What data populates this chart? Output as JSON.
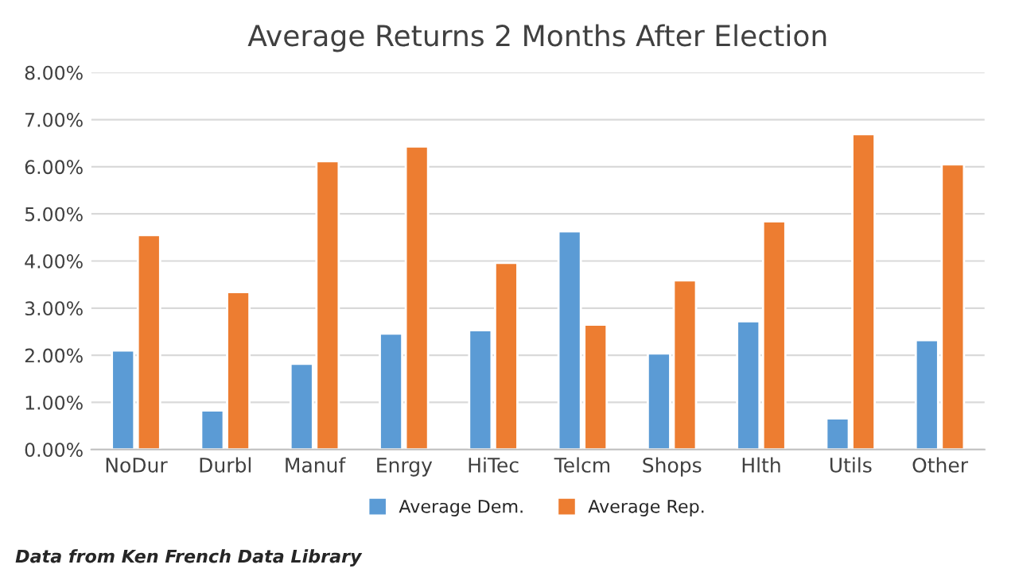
{
  "chart_data": {
    "type": "bar",
    "title": "Average Returns 2 Months After Election",
    "categories": [
      "NoDur",
      "Durbl",
      "Manuf",
      "Enrgy",
      "HiTec",
      "Telcm",
      "Shops",
      "Hlth",
      "Utils",
      "Other"
    ],
    "series": [
      {
        "name": "Average Dem.",
        "color": "#5b9bd5",
        "values": [
          2.1,
          0.83,
          1.82,
          2.46,
          2.53,
          4.63,
          2.04,
          2.72,
          0.66,
          2.32
        ]
      },
      {
        "name": "Average Rep.",
        "color": "#ed7d31",
        "values": [
          4.55,
          3.34,
          6.12,
          6.43,
          3.96,
          2.65,
          3.59,
          4.84,
          6.69,
          6.05
        ]
      }
    ],
    "ylim": [
      0,
      8
    ],
    "yticks": [
      {
        "value": 0,
        "label": "0.00%"
      },
      {
        "value": 1,
        "label": "1.00%"
      },
      {
        "value": 2,
        "label": "2.00%"
      },
      {
        "value": 3,
        "label": "3.00%"
      },
      {
        "value": 4,
        "label": "4.00%"
      },
      {
        "value": 5,
        "label": "5.00%"
      },
      {
        "value": 6,
        "label": "6.00%"
      },
      {
        "value": 7,
        "label": "7.00%"
      },
      {
        "value": 8,
        "label": "8.00%"
      }
    ],
    "grid": "y",
    "legend": "bottom",
    "annotations": [
      "Data from Ken French Data Library"
    ]
  }
}
